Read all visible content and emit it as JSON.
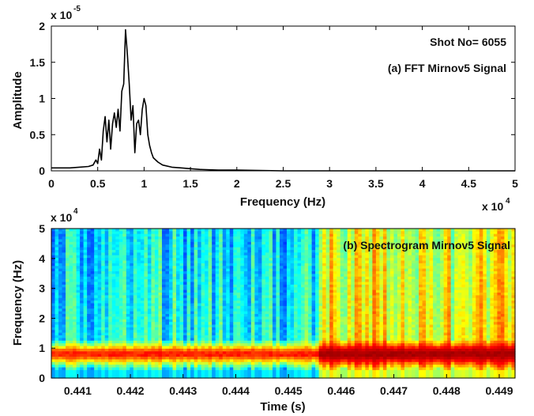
{
  "chart_data": [
    {
      "type": "line",
      "panel": "top",
      "annotations": [
        "Shot No= 6055",
        "(a) FFT Mirnov5 Signal"
      ],
      "xlabel": "Frequency (Hz)",
      "ylabel": "Amplitude",
      "x_exponent_label": "x 10",
      "x_exponent": "4",
      "y_exponent_label": "x 10",
      "y_exponent": "-5",
      "xlim": [
        0,
        5
      ],
      "ylim": [
        0,
        2
      ],
      "xticks": [
        "0",
        "0.5",
        "1",
        "1.5",
        "2",
        "2.5",
        "3",
        "3.5",
        "4",
        "4.5",
        "5"
      ],
      "yticks": [
        "0",
        "0.5",
        "1",
        "1.5",
        "2"
      ],
      "grid": false,
      "line_color": "#000000",
      "series": [
        {
          "x": [
            0,
            0.1,
            0.2,
            0.3,
            0.4,
            0.45,
            0.48,
            0.5,
            0.52,
            0.54,
            0.56,
            0.58,
            0.6,
            0.62,
            0.64,
            0.66,
            0.68,
            0.7,
            0.72,
            0.74,
            0.76,
            0.78,
            0.8,
            0.82,
            0.84,
            0.86,
            0.88,
            0.9,
            0.92,
            0.94,
            0.96,
            0.98,
            1.0,
            1.02,
            1.04,
            1.06,
            1.08,
            1.1,
            1.15,
            1.2,
            1.3,
            1.4,
            1.5,
            1.6,
            1.8,
            2.0,
            2.5,
            3.0,
            3.5,
            4.0,
            4.5,
            5.0
          ],
          "y": [
            0.04,
            0.04,
            0.04,
            0.05,
            0.06,
            0.08,
            0.15,
            0.1,
            0.3,
            0.15,
            0.55,
            0.75,
            0.4,
            0.7,
            0.3,
            0.65,
            0.8,
            0.6,
            0.85,
            0.55,
            1.1,
            1.2,
            1.95,
            1.6,
            1.2,
            0.7,
            0.9,
            0.25,
            0.65,
            0.7,
            0.5,
            0.85,
            1.0,
            0.9,
            0.5,
            0.35,
            0.25,
            0.18,
            0.12,
            0.08,
            0.05,
            0.04,
            0.03,
            0.02,
            0.01,
            0.01,
            0.0,
            0.0,
            0.0,
            0.0,
            0.0,
            0.0
          ]
        }
      ]
    },
    {
      "type": "heatmap",
      "panel": "bottom",
      "annotations": [
        "(b) Spectrogram Mirnov5 Signal"
      ],
      "xlabel": "Time (s)",
      "ylabel": "Frequency (Hz)",
      "y_exponent_label": "x 10",
      "y_exponent": "4",
      "xlim": [
        0.4405,
        0.4493
      ],
      "ylim": [
        0,
        5
      ],
      "xticks": [
        "0.441",
        "0.442",
        "0.443",
        "0.444",
        "0.445",
        "0.446",
        "0.447",
        "0.448",
        "0.449"
      ],
      "yticks": [
        "0",
        "1",
        "2",
        "3",
        "4",
        "5"
      ],
      "colormap": "jet",
      "colormap_stops": [
        "#00008f",
        "#0000ff",
        "#00ffff",
        "#ffff00",
        "#ff0000",
        "#800000"
      ],
      "description_bands": {
        "background_early": 0.42,
        "background_late": 0.62,
        "transition_time": 0.4456,
        "band_center": 0.8,
        "band_width": 0.22,
        "band_peak_early": 0.78,
        "band_peak_late": 0.94
      }
    }
  ]
}
